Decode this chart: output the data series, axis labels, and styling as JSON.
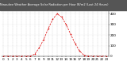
{
  "title": "Milwaukee Weather Average Solar Radiation per Hour W/m2 (Last 24 Hours)",
  "hours": [
    0,
    1,
    2,
    3,
    4,
    5,
    6,
    7,
    8,
    9,
    10,
    11,
    12,
    13,
    14,
    15,
    16,
    17,
    18,
    19,
    20,
    21,
    22,
    23
  ],
  "values": [
    0,
    0,
    0,
    0,
    0,
    0,
    2,
    20,
    80,
    160,
    260,
    350,
    400,
    370,
    300,
    210,
    120,
    50,
    10,
    1,
    0,
    0,
    0,
    0
  ],
  "line_color": "#dd0000",
  "bg_color": "#ffffff",
  "grid_color": "#999999",
  "title_bg_color": "#555555",
  "title_text_color": "#ffffff",
  "ylim": [
    0,
    430
  ],
  "xlim": [
    -0.5,
    23.5
  ],
  "yticks": [
    0,
    100,
    200,
    300,
    400
  ],
  "xtick_step": 1,
  "tick_fontsize": 3.0,
  "title_fontsize": 2.6
}
